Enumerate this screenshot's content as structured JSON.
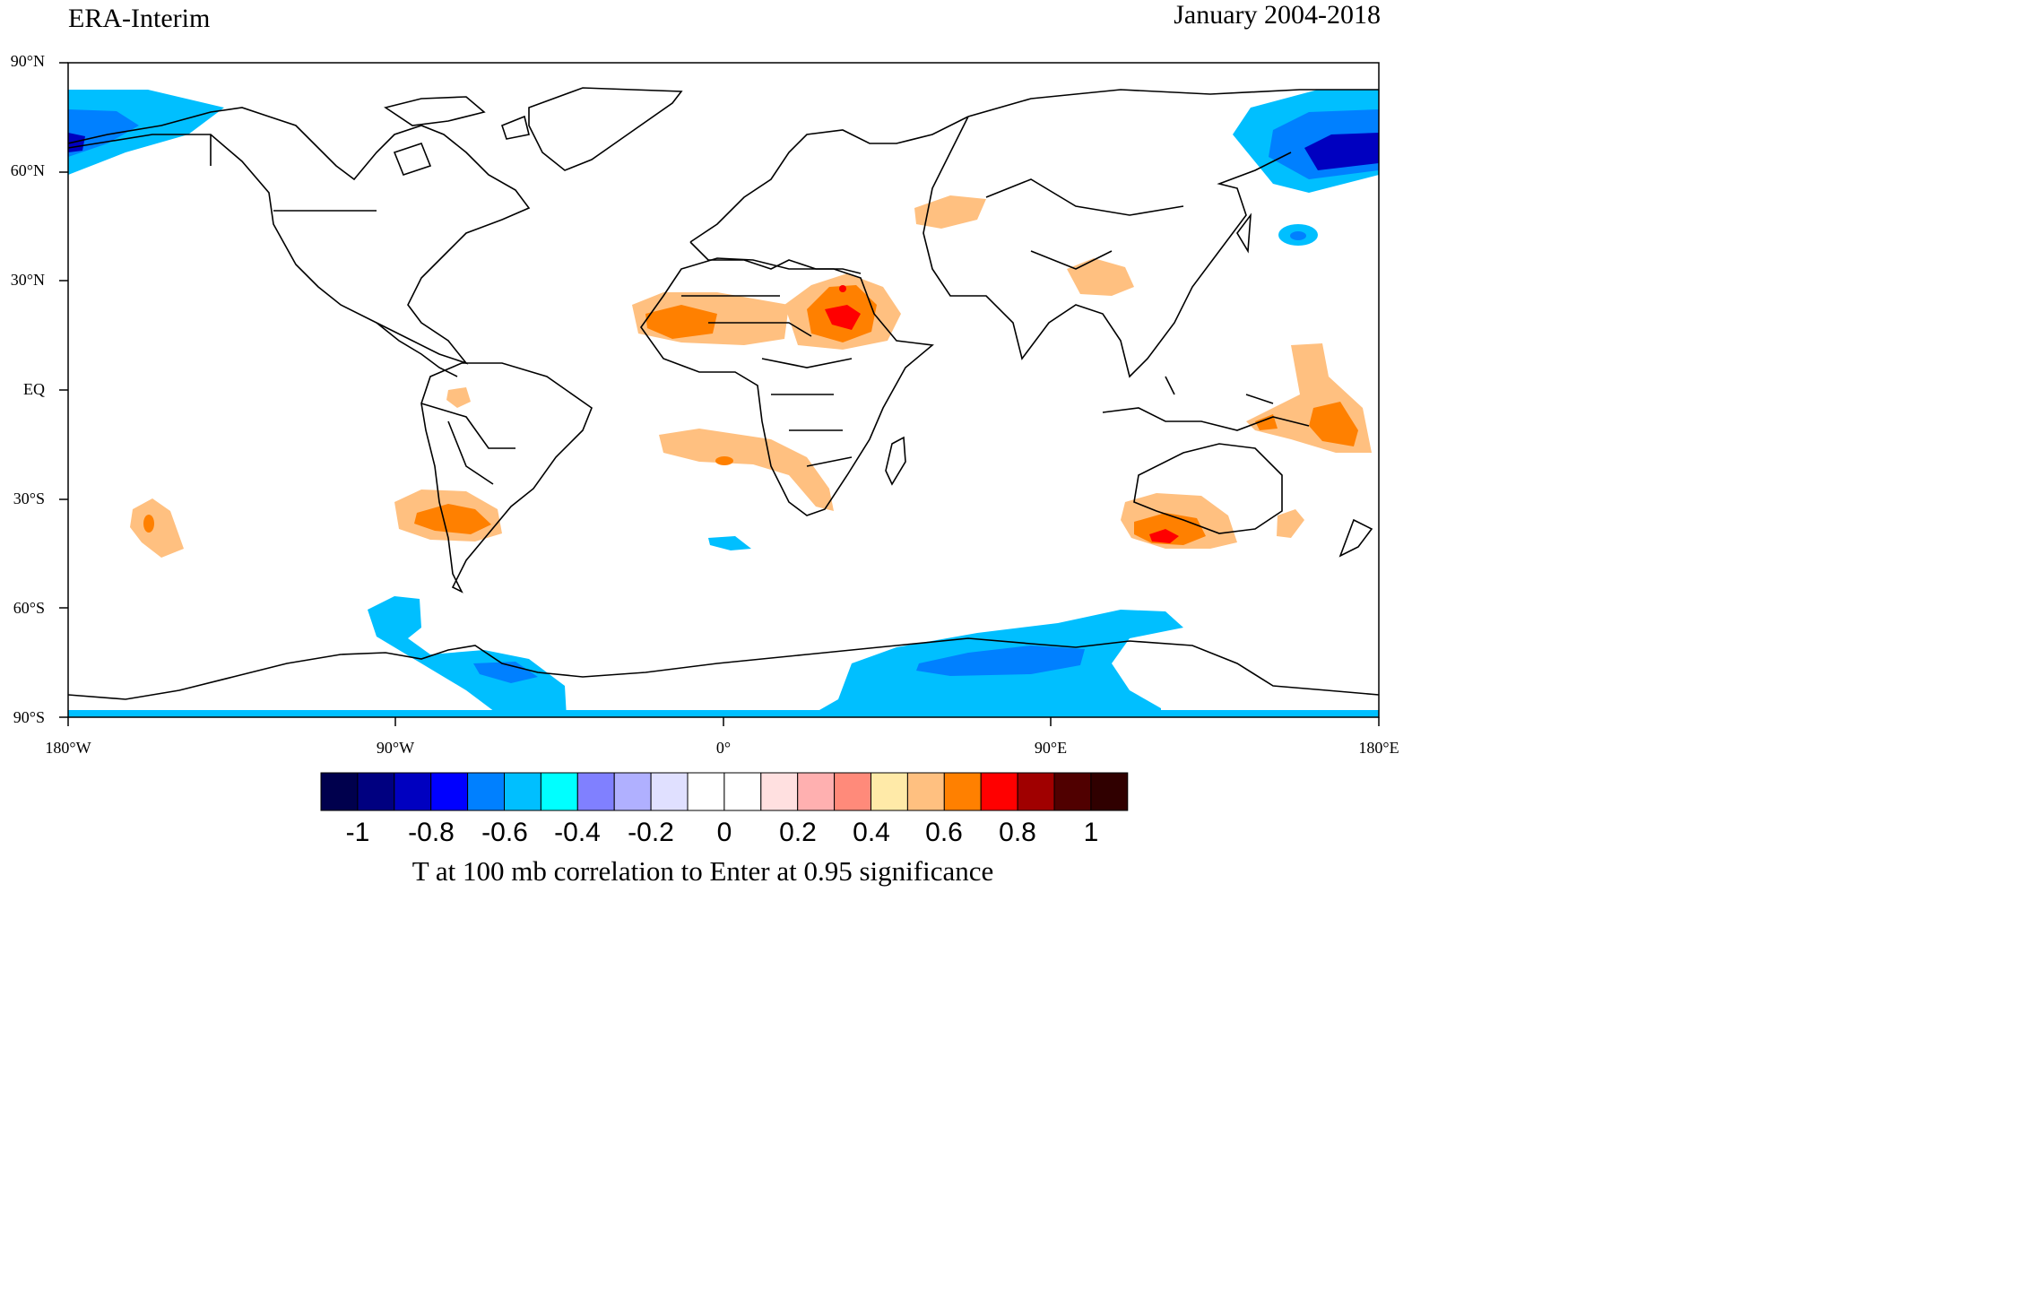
{
  "map": {
    "source_label": "ERA-Interim",
    "period_label": "January 2004-2018",
    "lat_labels": [
      "90°N",
      "60°N",
      "30°N",
      "EQ",
      "30°S",
      "60°S",
      "90°S"
    ],
    "lon_labels": [
      "180°W",
      "90°W",
      "0°",
      "90°E",
      "180°E"
    ],
    "colorbar": {
      "title": "T at 100 mb correlation to Enter at 0.95 significance",
      "tick_labels": [
        "-1",
        "-0.8",
        "-0.6",
        "-0.4",
        "-0.2",
        "0",
        "0.2",
        "0.4",
        "0.6",
        "0.8",
        "1"
      ],
      "colors": [
        "#00004d",
        "#000080",
        "#0000c0",
        "#0000ff",
        "#0080ff",
        "#00bfff",
        "#00ffff",
        "#8080ff",
        "#b0b0ff",
        "#e0e0ff",
        "#ffffff",
        "#ffffff",
        "#ffe0e0",
        "#ffb0b0",
        "#ff8a7a",
        "#ffeaa8",
        "#ffc080",
        "#ff8000",
        "#ff0000",
        "#a00000",
        "#500000",
        "#300000"
      ]
    }
  }
}
